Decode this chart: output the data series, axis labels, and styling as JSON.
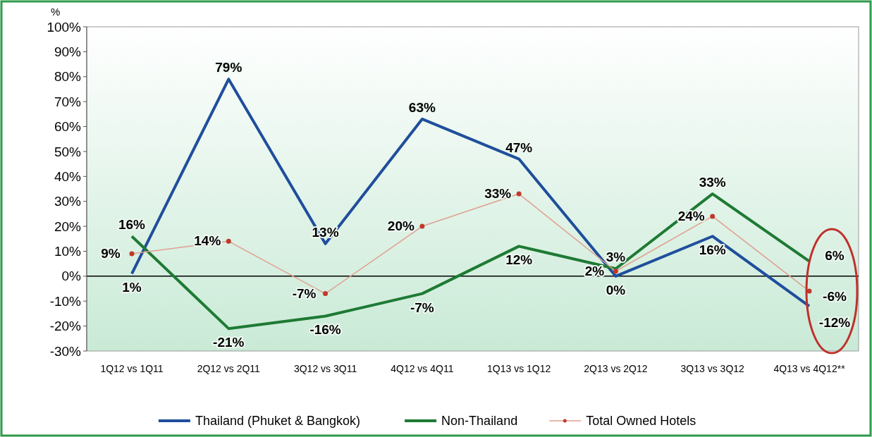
{
  "chart_data": {
    "type": "line",
    "ylabel": "%",
    "categories": [
      "1Q12 vs 1Q11",
      "2Q12 vs 2Q11",
      "3Q12 vs 3Q11",
      "4Q12 vs 4Q11",
      "1Q13 vs 1Q12",
      "2Q13 vs 2Q12",
      "3Q13 vs 3Q12",
      "4Q13 vs 4Q12**"
    ],
    "series": [
      {
        "name": "Thailand (Phuket & Bangkok)",
        "color": "#1f4e9c",
        "values": [
          1,
          79,
          13,
          63,
          47,
          0,
          16,
          -12
        ],
        "value_labels": [
          "1%",
          "79%",
          "13%",
          "63%",
          "47%",
          "0%",
          "16%",
          "-12%"
        ],
        "marker": "none"
      },
      {
        "name": "Non-Thailand",
        "color": "#1e7a34",
        "values": [
          16,
          -21,
          -16,
          -7,
          12,
          3,
          33,
          6
        ],
        "value_labels": [
          "16%",
          "-21%",
          "-16%",
          "-7%",
          "12%",
          "3%",
          "33%",
          "6%"
        ],
        "marker": "none"
      },
      {
        "name": "Total Owned Hotels",
        "color": "#e0a090",
        "values": [
          9,
          14,
          -7,
          20,
          33,
          2,
          24,
          -6
        ],
        "value_labels": [
          "9%",
          "14%",
          "-7%",
          "20%",
          "33%",
          "2%",
          "24%",
          "-6%"
        ],
        "marker": "circle"
      }
    ],
    "ylim": [
      -30,
      100
    ],
    "yticks": [
      {
        "value": -30,
        "label": "-30%"
      },
      {
        "value": -20,
        "label": "-20%"
      },
      {
        "value": -10,
        "label": "-10%"
      },
      {
        "value": 0,
        "label": "0%"
      },
      {
        "value": 10,
        "label": "10%"
      },
      {
        "value": 20,
        "label": "20%"
      },
      {
        "value": 30,
        "label": "30%"
      },
      {
        "value": 40,
        "label": "40%"
      },
      {
        "value": 50,
        "label": "50%"
      },
      {
        "value": 60,
        "label": "60%"
      },
      {
        "value": 70,
        "label": "70%"
      },
      {
        "value": 80,
        "label": "80%"
      },
      {
        "value": 90,
        "label": "90%"
      },
      {
        "value": 100,
        "label": "100%"
      }
    ],
    "ref_lines": [
      {
        "axis": "y",
        "value": 0,
        "color": "#000000"
      }
    ],
    "grid": false,
    "legend": "bottom"
  }
}
